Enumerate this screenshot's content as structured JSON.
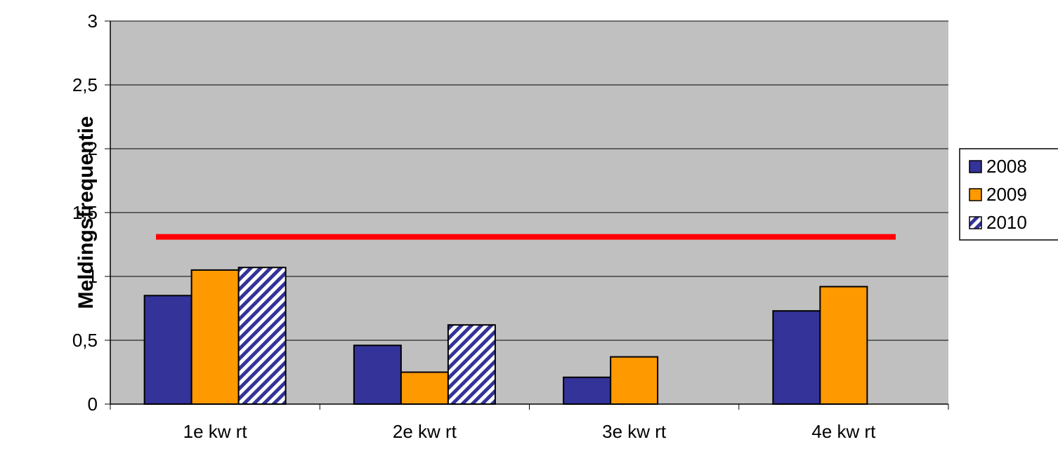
{
  "chart_data": {
    "type": "bar",
    "categories": [
      "1e kw rt",
      "2e kw rt",
      "3e kw rt",
      "4e kw rt"
    ],
    "series": [
      {
        "name": "2008",
        "values": [
          0.85,
          0.46,
          0.21,
          0.73
        ],
        "color": "#333399",
        "pattern": "solid"
      },
      {
        "name": "2009",
        "values": [
          1.05,
          0.25,
          0.37,
          0.92
        ],
        "color": "#FF9900",
        "pattern": "solid"
      },
      {
        "name": "2010",
        "values": [
          1.07,
          0.62,
          null,
          null
        ],
        "color": "#333399",
        "pattern": "diagonal-stripes"
      }
    ],
    "reference_line": {
      "value": 1.31,
      "color": "#FF0000"
    },
    "ylabel": "Meldingsfrequentie",
    "xlabel": "",
    "ylim": [
      0,
      3
    ],
    "yticks": [
      "0",
      "0,5",
      "1",
      "1,5",
      "2",
      "2,5",
      "3"
    ],
    "ytick_values": [
      0,
      0.5,
      1,
      1.5,
      2,
      2.5,
      3
    ],
    "grid": true,
    "plot_background": "#C0C0C0",
    "legend_position": "right"
  }
}
